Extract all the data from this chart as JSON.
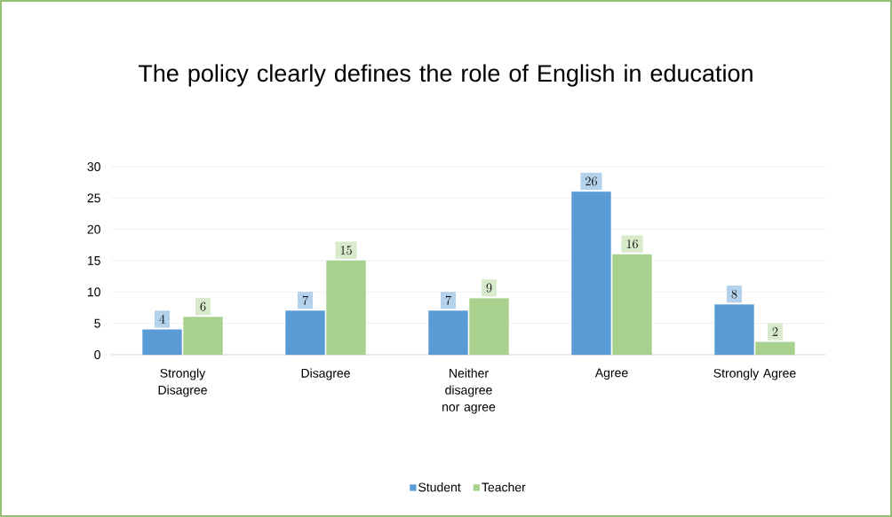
{
  "chart_data": {
    "type": "bar",
    "title": "The policy clearly defines the role of English in education",
    "categories": [
      "Strongly Disagree",
      "Disagree",
      "Neither disagree nor agree",
      "Agree",
      "Strongly Agree"
    ],
    "series": [
      {
        "name": "Student",
        "color": "#5b9bd5",
        "values": [
          4,
          7,
          7,
          26,
          8
        ]
      },
      {
        "name": "Teacher",
        "color": "#a9d18e",
        "values": [
          6,
          15,
          9,
          16,
          2
        ]
      }
    ],
    "ylim": [
      0,
      30
    ],
    "yticks": [
      0,
      5,
      10,
      15,
      20,
      25,
      30
    ],
    "grid": "y",
    "legend": "bottom",
    "data_labels": true
  }
}
